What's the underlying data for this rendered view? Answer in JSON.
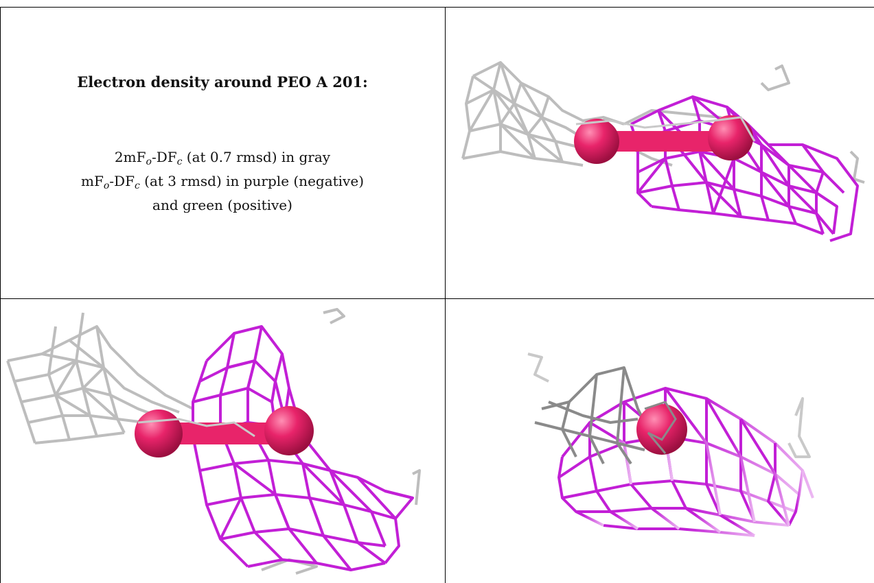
{
  "caption": {
    "title": "Electron density around PEO A 201:",
    "line1": {
      "pre": "2mF",
      "sub1": "o",
      "mid": "-DF",
      "sub2": "c",
      "post": " (at 0.7 rmsd) in gray"
    },
    "line2": {
      "pre": "mF",
      "sub1": "o",
      "mid": "-DF",
      "sub2": "c",
      "post": " (at 3 rmsd) in purple (negative)"
    },
    "line3": "and green (positive)"
  },
  "colors": {
    "gray_mesh": "#bdbdbd",
    "purple_mesh": "#c21fd6",
    "atom": "#e8246a",
    "border": "#000000"
  },
  "views": [
    {
      "name": "view-top-right",
      "description_icon": "density-view"
    },
    {
      "name": "view-bottom-left",
      "description_icon": "density-view"
    },
    {
      "name": "view-bottom-right",
      "description_icon": "density-view"
    }
  ]
}
